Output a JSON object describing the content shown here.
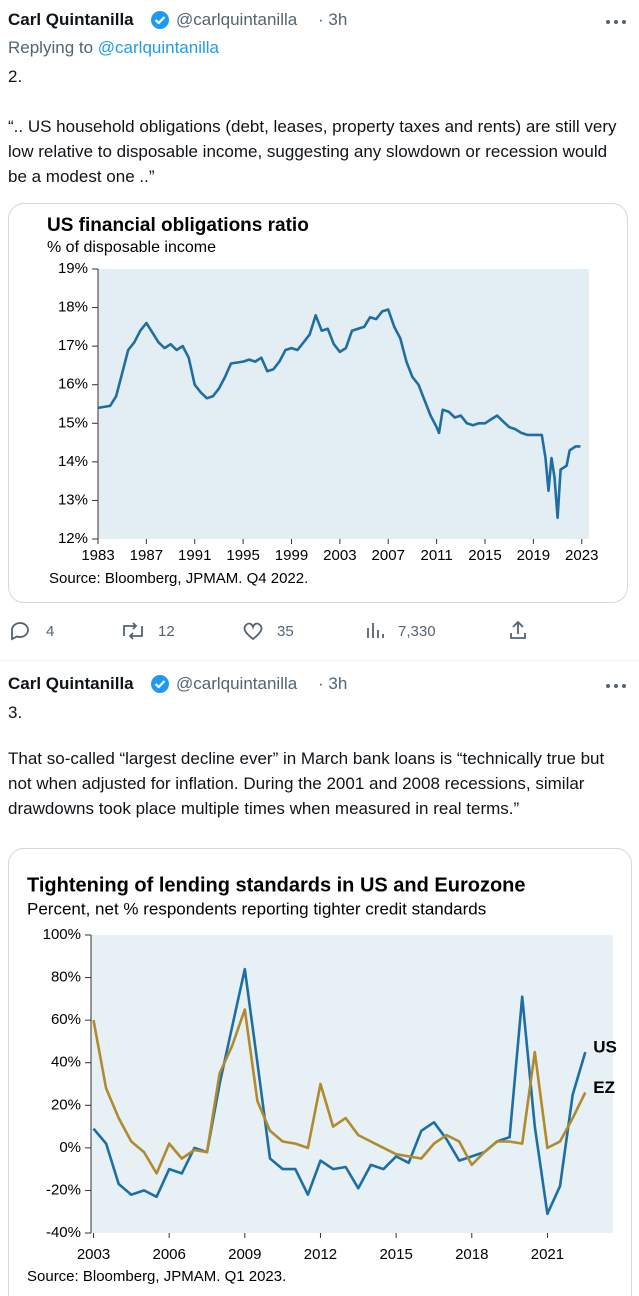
{
  "tweets": [
    {
      "author": "Carl Quintanilla",
      "handle": "@carlquintanilla",
      "time": "· 3h",
      "replying": "Replying to",
      "replying_handle": "@carlquintanilla",
      "number": "2.",
      "text": "“.. US household obligations (debt, leases, property taxes and rents) are still very low relative to disposable income, suggesting any slowdown or recession would be a modest one ..”",
      "chart": {
        "type": "line",
        "title": "US financial obligations ratio",
        "subtitle": "% of disposable income",
        "x": [
          1983,
          1984,
          1984.5,
          1985,
          1985.5,
          1986,
          1986.5,
          1987,
          1987.5,
          1988,
          1988.5,
          1989,
          1989.5,
          1990,
          1990.5,
          1991,
          1991.5,
          1992,
          1992.5,
          1993,
          1993.5,
          1994,
          1995,
          1995.5,
          1996,
          1996.5,
          1997,
          1997.5,
          1998,
          1998.5,
          1999,
          1999.5,
          2000,
          2000.5,
          2001,
          2001.5,
          2002,
          2002.5,
          2003,
          2003.5,
          2004,
          2004.5,
          2005,
          2005.5,
          2006,
          2006.5,
          2007,
          2007.5,
          2008,
          2008.5,
          2009,
          2009.5,
          2010,
          2010.5,
          2011,
          2011.2,
          2011.5,
          2012,
          2012.5,
          2013,
          2013.5,
          2014,
          2014.5,
          2015,
          2015.5,
          2016,
          2016.5,
          2017,
          2017.5,
          2018,
          2018.5,
          2019,
          2019.7,
          2020,
          2020.25,
          2020.5,
          2020.75,
          2021,
          2021.25,
          2021.75,
          2022,
          2022.5,
          2022.9
        ],
        "values": [
          15.4,
          15.45,
          15.7,
          16.3,
          16.9,
          17.1,
          17.4,
          17.6,
          17.35,
          17.1,
          16.95,
          17.05,
          16.9,
          17.0,
          16.7,
          16.0,
          15.8,
          15.65,
          15.7,
          15.9,
          16.2,
          16.55,
          16.6,
          16.65,
          16.6,
          16.7,
          16.35,
          16.4,
          16.6,
          16.9,
          16.95,
          16.9,
          17.1,
          17.3,
          17.8,
          17.4,
          17.45,
          17.05,
          16.85,
          16.95,
          17.4,
          17.45,
          17.5,
          17.75,
          17.7,
          17.9,
          17.95,
          17.5,
          17.2,
          16.6,
          16.2,
          16.0,
          15.6,
          15.2,
          14.9,
          14.75,
          15.35,
          15.3,
          15.15,
          15.2,
          15.0,
          14.95,
          15.0,
          15.0,
          15.1,
          15.2,
          15.05,
          14.9,
          14.85,
          14.75,
          14.7,
          14.7,
          14.7,
          14.1,
          13.25,
          14.1,
          13.6,
          12.55,
          13.8,
          13.9,
          14.3,
          14.4,
          14.4
        ],
        "color": "#1f6e9f",
        "xlim": [
          1983,
          2023.6
        ],
        "ylim": [
          12,
          19
        ],
        "xticks": [
          1983,
          1987,
          1991,
          1995,
          1999,
          2003,
          2007,
          2011,
          2015,
          2019,
          2023
        ],
        "yticks": [
          {
            "value": 12,
            "label": "12%"
          },
          {
            "value": 13,
            "label": "13%"
          },
          {
            "value": 14,
            "label": "14%"
          },
          {
            "value": 15,
            "label": "15%"
          },
          {
            "value": 16,
            "label": "16%"
          },
          {
            "value": 17,
            "label": "17%"
          },
          {
            "value": 18,
            "label": "18%"
          },
          {
            "value": 19,
            "label": "19%"
          }
        ],
        "source": "Source: Bloomberg, JPMAM. Q4 2022."
      },
      "actions": {
        "replies": "4",
        "retweets": "12",
        "likes": "35",
        "views": "7,330"
      }
    },
    {
      "author": "Carl Quintanilla",
      "handle": "@carlquintanilla",
      "time": "· 3h",
      "number": "3.",
      "text": "That so-called “largest decline ever” in March bank loans is “technically true but not when adjusted for inflation. During the 2001 and 2008 recessions, similar drawdowns took place multiple times when measured in real terms.”",
      "chart": {
        "type": "line",
        "title": "Tightening of lending standards in US and Eurozone",
        "subtitle": "Percent, net % respondents reporting tighter credit standards",
        "x": [
          2003,
          2003.5,
          2004,
          2004.5,
          2005,
          2005.5,
          2006,
          2006.5,
          2007,
          2007.5,
          2008,
          2008.5,
          2009,
          2009.5,
          2010,
          2010.5,
          2011,
          2011.5,
          2012,
          2012.5,
          2013,
          2013.5,
          2014,
          2014.5,
          2015,
          2015.5,
          2016,
          2016.5,
          2017,
          2017.5,
          2018,
          2018.5,
          2019,
          2019.5,
          2020,
          2020.5,
          2021,
          2021.5,
          2022,
          2022.5
        ],
        "series": [
          {
            "name": "US",
            "color": "#1c6ea4",
            "values": [
              9,
              2,
              -17,
              -22,
              -20,
              -23,
              -10,
              -12,
              0,
              -2,
              30,
              57,
              84,
              40,
              -5,
              -10,
              -10,
              -22,
              -6,
              -10,
              -9,
              -19,
              -8,
              -10,
              -4,
              -7,
              8,
              12,
              4,
              -6,
              -4,
              -2,
              3,
              5,
              71,
              10,
              -31,
              -18,
              25,
              45
            ]
          },
          {
            "name": "EZ",
            "color": "#b08a2e",
            "values": [
              60,
              28,
              14,
              3,
              -2,
              -12,
              2,
              -5,
              -1,
              -2,
              35,
              48,
              65,
              22,
              8,
              3,
              2,
              0,
              30,
              10,
              14,
              6,
              3,
              0,
              -3,
              -4,
              -5,
              2,
              6,
              3,
              -8,
              -2,
              3,
              3,
              2,
              45,
              0,
              3,
              14,
              26
            ]
          }
        ],
        "xlim": [
          2002.9,
          2023.6
        ],
        "ylim": [
          -40,
          100
        ],
        "xticks": [
          2003,
          2006,
          2009,
          2012,
          2015,
          2018,
          2021
        ],
        "yticks": [
          {
            "value": -40,
            "label": "-40%"
          },
          {
            "value": -20,
            "label": "-20%"
          },
          {
            "value": 0,
            "label": "0%"
          },
          {
            "value": 20,
            "label": "20%"
          },
          {
            "value": 40,
            "label": "40%"
          },
          {
            "value": 60,
            "label": "60%"
          },
          {
            "value": 80,
            "label": "80%"
          },
          {
            "value": 100,
            "label": "100%"
          }
        ],
        "source": "Source: Bloomberg, JPMAM. Q1 2023."
      }
    }
  ]
}
